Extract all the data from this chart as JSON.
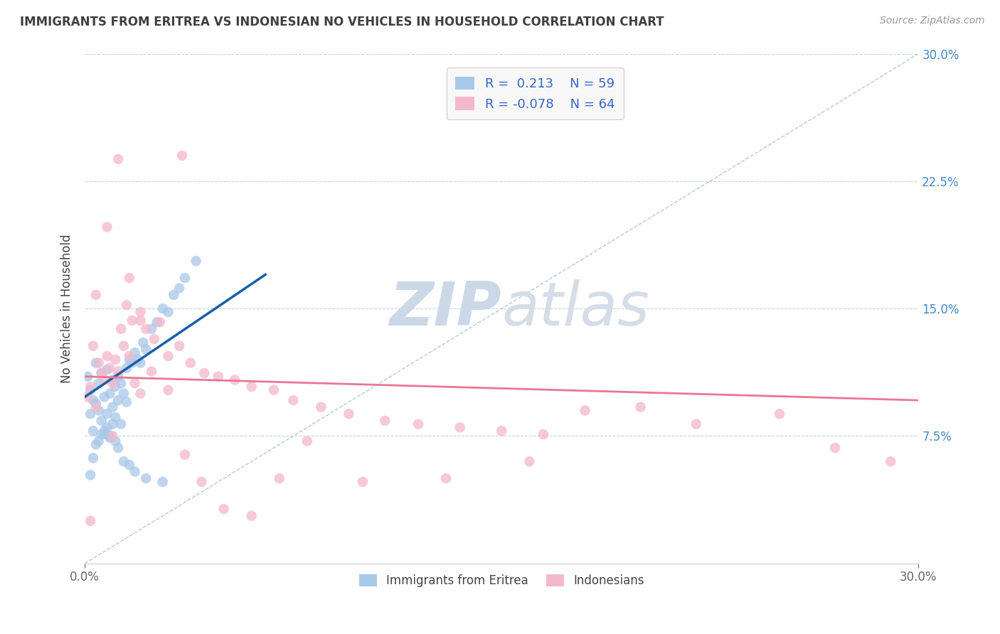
{
  "title": "IMMIGRANTS FROM ERITREA VS INDONESIAN NO VEHICLES IN HOUSEHOLD CORRELATION CHART",
  "source_text": "Source: ZipAtlas.com",
  "ylabel": "No Vehicles in Household",
  "blue_color": "#a8c8e8",
  "pink_color": "#f4b8cc",
  "blue_line_color": "#1a5fa8",
  "pink_line_color": "#e87890",
  "dashed_line_color": "#a8b8d0",
  "legend_text_color": "#3366cc",
  "watermark_color": "#ccd8e8",
  "background_color": "#ffffff",
  "grid_color": "#c8d4e4",
  "title_color": "#404040",
  "xlim": [
    0.0,
    0.3
  ],
  "ylim": [
    0.0,
    0.3
  ],
  "blue_scatter_x": [
    0.001,
    0.002,
    0.002,
    0.003,
    0.003,
    0.004,
    0.004,
    0.005,
    0.005,
    0.006,
    0.006,
    0.007,
    0.007,
    0.008,
    0.008,
    0.009,
    0.009,
    0.01,
    0.01,
    0.011,
    0.011,
    0.012,
    0.012,
    0.013,
    0.013,
    0.014,
    0.015,
    0.015,
    0.016,
    0.017,
    0.018,
    0.019,
    0.02,
    0.021,
    0.022,
    0.024,
    0.026,
    0.028,
    0.03,
    0.032,
    0.034,
    0.036,
    0.04,
    0.002,
    0.003,
    0.004,
    0.005,
    0.006,
    0.007,
    0.008,
    0.009,
    0.01,
    0.011,
    0.012,
    0.014,
    0.016,
    0.018,
    0.022,
    0.028
  ],
  "blue_scatter_y": [
    0.11,
    0.102,
    0.088,
    0.096,
    0.078,
    0.118,
    0.094,
    0.106,
    0.09,
    0.112,
    0.084,
    0.098,
    0.076,
    0.114,
    0.088,
    0.1,
    0.074,
    0.108,
    0.092,
    0.104,
    0.086,
    0.11,
    0.096,
    0.106,
    0.082,
    0.1,
    0.115,
    0.095,
    0.12,
    0.118,
    0.124,
    0.12,
    0.118,
    0.13,
    0.126,
    0.138,
    0.142,
    0.15,
    0.148,
    0.158,
    0.162,
    0.168,
    0.178,
    0.052,
    0.062,
    0.07,
    0.072,
    0.076,
    0.078,
    0.08,
    0.075,
    0.082,
    0.072,
    0.068,
    0.06,
    0.058,
    0.054,
    0.05,
    0.048
  ],
  "pink_scatter_x": [
    0.001,
    0.002,
    0.003,
    0.004,
    0.005,
    0.006,
    0.007,
    0.008,
    0.009,
    0.01,
    0.011,
    0.012,
    0.013,
    0.014,
    0.015,
    0.016,
    0.017,
    0.018,
    0.02,
    0.022,
    0.024,
    0.027,
    0.03,
    0.034,
    0.038,
    0.043,
    0.048,
    0.054,
    0.06,
    0.068,
    0.075,
    0.085,
    0.095,
    0.108,
    0.12,
    0.135,
    0.15,
    0.165,
    0.18,
    0.2,
    0.22,
    0.25,
    0.27,
    0.29,
    0.004,
    0.008,
    0.012,
    0.016,
    0.02,
    0.025,
    0.03,
    0.036,
    0.042,
    0.05,
    0.06,
    0.07,
    0.08,
    0.1,
    0.13,
    0.16,
    0.002,
    0.01,
    0.02,
    0.035
  ],
  "pink_scatter_y": [
    0.098,
    0.104,
    0.128,
    0.092,
    0.118,
    0.112,
    0.108,
    0.122,
    0.115,
    0.106,
    0.12,
    0.113,
    0.138,
    0.128,
    0.152,
    0.122,
    0.143,
    0.106,
    0.148,
    0.138,
    0.113,
    0.142,
    0.122,
    0.128,
    0.118,
    0.112,
    0.11,
    0.108,
    0.104,
    0.102,
    0.096,
    0.092,
    0.088,
    0.084,
    0.082,
    0.08,
    0.078,
    0.076,
    0.09,
    0.092,
    0.082,
    0.088,
    0.068,
    0.06,
    0.158,
    0.198,
    0.238,
    0.168,
    0.143,
    0.132,
    0.102,
    0.064,
    0.048,
    0.032,
    0.028,
    0.05,
    0.072,
    0.048,
    0.05,
    0.06,
    0.025,
    0.075,
    0.1,
    0.24
  ],
  "blue_trend_x": [
    0.0,
    0.065
  ],
  "blue_trend_y": [
    0.098,
    0.17
  ],
  "pink_trend_x": [
    0.0,
    0.3
  ],
  "pink_trend_y": [
    0.11,
    0.096
  ],
  "diag_line_x": [
    0.0,
    0.3
  ],
  "diag_line_y": [
    0.0,
    0.3
  ],
  "legend_box_color": "#f8f8f8",
  "legend_box_edge": "#cccccc",
  "yticks": [
    0.075,
    0.15,
    0.225,
    0.3
  ],
  "ytick_labels": [
    "7.5%",
    "15.0%",
    "22.5%",
    "30.0%"
  ]
}
